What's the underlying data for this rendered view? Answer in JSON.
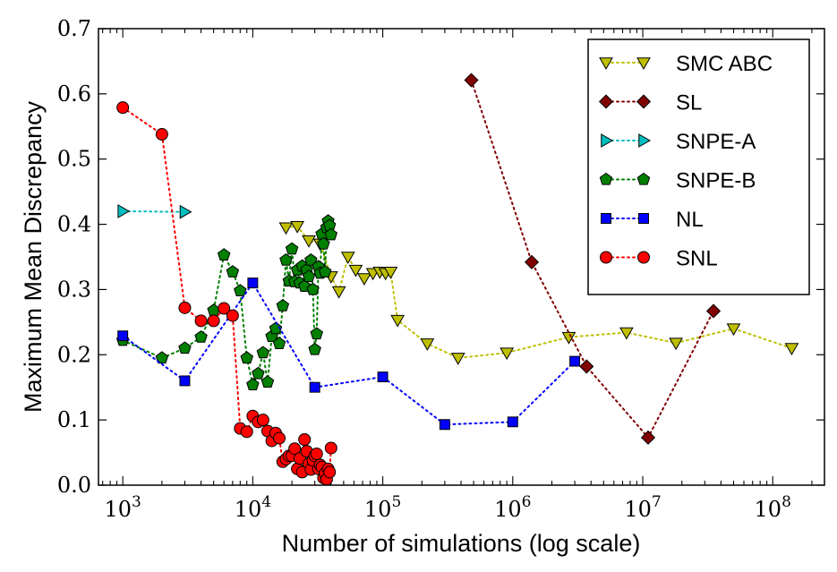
{
  "chart_data": {
    "type": "line",
    "xscale": "log",
    "xlabel": "Number of simulations (log scale)",
    "ylabel": "Maximum Mean Discrepancy",
    "xlim": [
      650,
      250000000
    ],
    "ylim": [
      0,
      0.7
    ],
    "x_ticks": [
      {
        "value": 1000,
        "base": "10",
        "exp": "3"
      },
      {
        "value": 10000,
        "base": "10",
        "exp": "4"
      },
      {
        "value": 100000,
        "base": "10",
        "exp": "5"
      },
      {
        "value": 1000000,
        "base": "10",
        "exp": "6"
      },
      {
        "value": 10000000,
        "base": "10",
        "exp": "7"
      },
      {
        "value": 100000000,
        "base": "10",
        "exp": "8"
      }
    ],
    "y_ticks": [
      {
        "value": 0,
        "label": "0.0"
      },
      {
        "value": 0.1,
        "label": "0.1"
      },
      {
        "value": 0.2,
        "label": "0.2"
      },
      {
        "value": 0.3,
        "label": "0.3"
      },
      {
        "value": 0.4,
        "label": "0.4"
      },
      {
        "value": 0.5,
        "label": "0.5"
      },
      {
        "value": 0.6,
        "label": "0.6"
      },
      {
        "value": 0.7,
        "label": "0.7"
      }
    ],
    "legend_position": "top-right",
    "series": [
      {
        "name": "SMC ABC",
        "marker": "triangle-down",
        "color": "#bfbf00",
        "x": [
          18000,
          22000,
          27000,
          33000,
          40000,
          46000,
          54000,
          62000,
          72000,
          84000,
          95000,
          105000,
          115000,
          130000,
          220000,
          380000,
          900000,
          2700000,
          7500000,
          18000000,
          50000000,
          140000000
        ],
        "y": [
          0.395,
          0.397,
          0.375,
          0.37,
          0.32,
          0.297,
          0.35,
          0.33,
          0.317,
          0.325,
          0.327,
          0.325,
          0.327,
          0.253,
          0.217,
          0.195,
          0.203,
          0.227,
          0.234,
          0.218,
          0.24,
          0.21
        ]
      },
      {
        "name": "SL",
        "marker": "diamond",
        "color": "#800000",
        "x": [
          480000,
          1400000,
          3700000,
          11000000,
          35000000
        ],
        "y": [
          0.621,
          0.342,
          0.182,
          0.073,
          0.267
        ]
      },
      {
        "name": "SNPE-A",
        "marker": "triangle-right",
        "color": "#00bfbf",
        "x": [
          1000,
          3000
        ],
        "y": [
          0.42,
          0.419
        ]
      },
      {
        "name": "SNPE-B",
        "marker": "pentagon",
        "color": "#007f00",
        "x": [
          1000,
          2000,
          3000,
          4000,
          5000,
          6000,
          7000,
          8000,
          9000,
          10000,
          11000,
          12000,
          13000,
          14000,
          15000,
          16000,
          17000,
          18000,
          19000,
          20000,
          21000,
          22000,
          23000,
          24000,
          25000,
          26000,
          27000,
          28000,
          29000,
          30000,
          31000,
          32000,
          33000,
          34000,
          35000,
          36000,
          37000,
          38000,
          39000,
          40000
        ],
        "y": [
          0.222,
          0.195,
          0.21,
          0.227,
          0.268,
          0.353,
          0.327,
          0.298,
          0.195,
          0.154,
          0.171,
          0.203,
          0.158,
          0.228,
          0.24,
          0.217,
          0.275,
          0.345,
          0.313,
          0.362,
          0.312,
          0.33,
          0.31,
          0.336,
          0.305,
          0.33,
          0.32,
          0.345,
          0.3,
          0.208,
          0.232,
          0.335,
          0.325,
          0.385,
          0.37,
          0.327,
          0.395,
          0.405,
          0.398,
          0.384
        ]
      },
      {
        "name": "NL",
        "marker": "square",
        "color": "#0000ff",
        "x": [
          1000,
          3000,
          10000,
          30000,
          100000,
          300000,
          1000000,
          3000000
        ],
        "y": [
          0.229,
          0.16,
          0.31,
          0.15,
          0.166,
          0.093,
          0.097,
          0.19
        ]
      },
      {
        "name": "SNL",
        "marker": "circle",
        "color": "#ff0000",
        "x": [
          1000,
          2000,
          3000,
          4000,
          5000,
          6000,
          7000,
          8000,
          9000,
          10000,
          11000,
          12000,
          13000,
          14000,
          15000,
          16000,
          17000,
          18000,
          19000,
          20000,
          21000,
          22000,
          23000,
          24000,
          25000,
          26000,
          27000,
          28000,
          29000,
          30000,
          31000,
          32000,
          33000,
          34000,
          35000,
          36000,
          37000,
          38000,
          39000,
          40000
        ],
        "y": [
          0.579,
          0.538,
          0.272,
          0.252,
          0.252,
          0.271,
          0.26,
          0.087,
          0.082,
          0.106,
          0.097,
          0.1,
          0.083,
          0.068,
          0.08,
          0.072,
          0.036,
          0.04,
          0.045,
          0.045,
          0.056,
          0.025,
          0.041,
          0.02,
          0.07,
          0.052,
          0.033,
          0.024,
          0.038,
          0.045,
          0.048,
          0.025,
          0.031,
          0.028,
          0.011,
          0.018,
          0.009,
          0.025,
          0.02,
          0.057
        ]
      }
    ]
  }
}
